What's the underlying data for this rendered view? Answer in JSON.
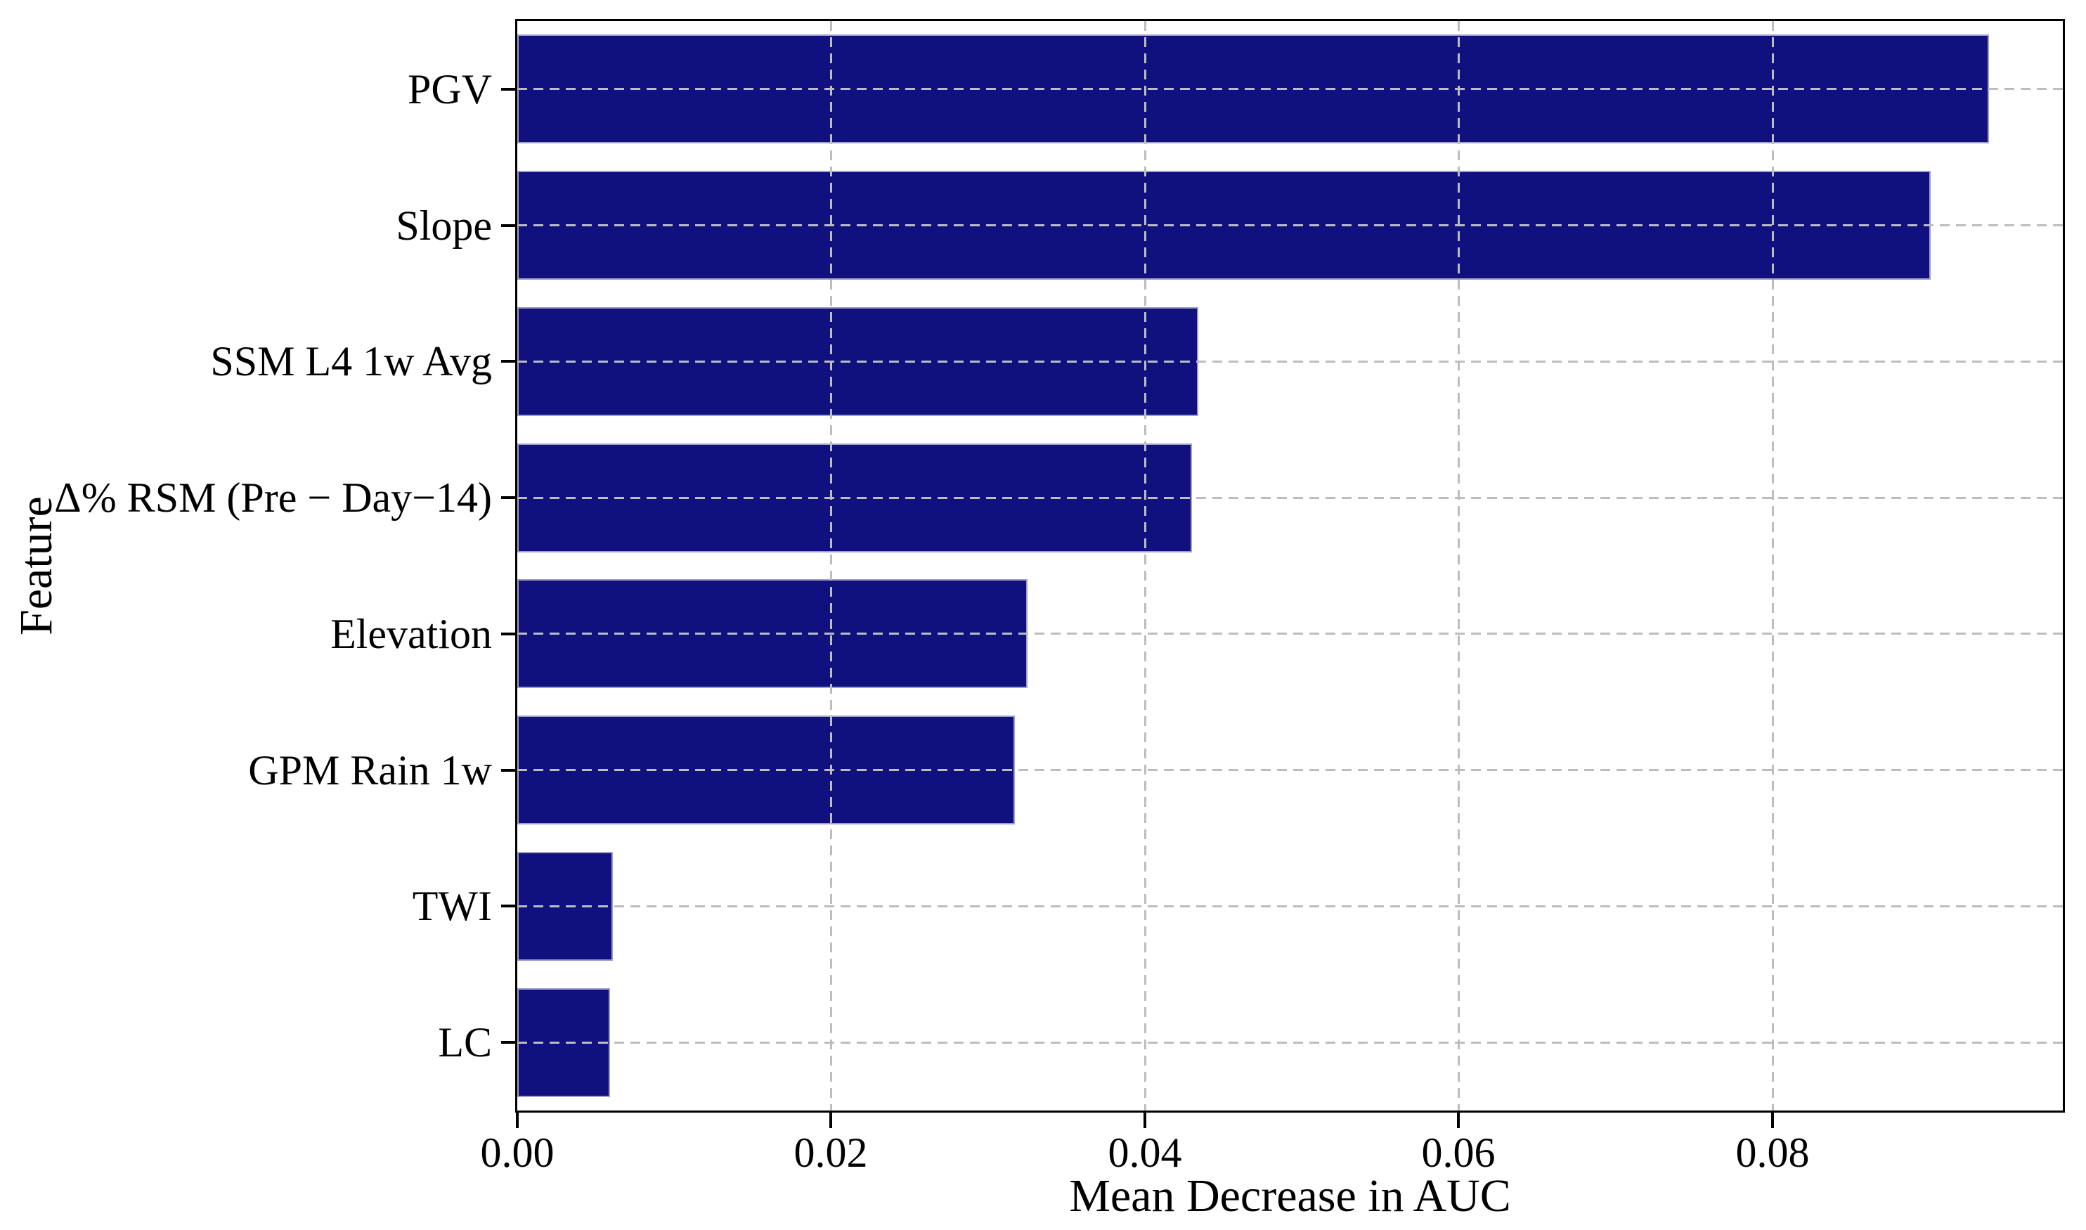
{
  "chart_data": {
    "type": "bar",
    "orientation": "horizontal",
    "title": "",
    "xlabel": "Mean Decrease in AUC",
    "ylabel": "Feature",
    "categories": [
      "PGV",
      "Slope",
      "SSM L4 1w Avg",
      "Δ% RSM (Pre − Day−14)",
      "Elevation",
      "GPM Rain 1w",
      "TWI",
      "LC"
    ],
    "values": [
      0.0938,
      0.0901,
      0.0434,
      0.043,
      0.0325,
      0.0317,
      0.0061,
      0.0059
    ],
    "xlim": [
      0,
      0.0985
    ],
    "xticks": [
      0.0,
      0.02,
      0.04,
      0.06,
      0.08
    ],
    "xtick_labels": [
      "0.00",
      "0.02",
      "0.04",
      "0.06",
      "0.08"
    ],
    "grid": "both-dashed",
    "legend_position": "none",
    "colors": {
      "bar_fill": "#10107e",
      "bar_edge": "#9f9fce",
      "gridline": "#bdbdbd",
      "spine": "#000000",
      "text": "#000000",
      "background": "#ffffff"
    }
  }
}
